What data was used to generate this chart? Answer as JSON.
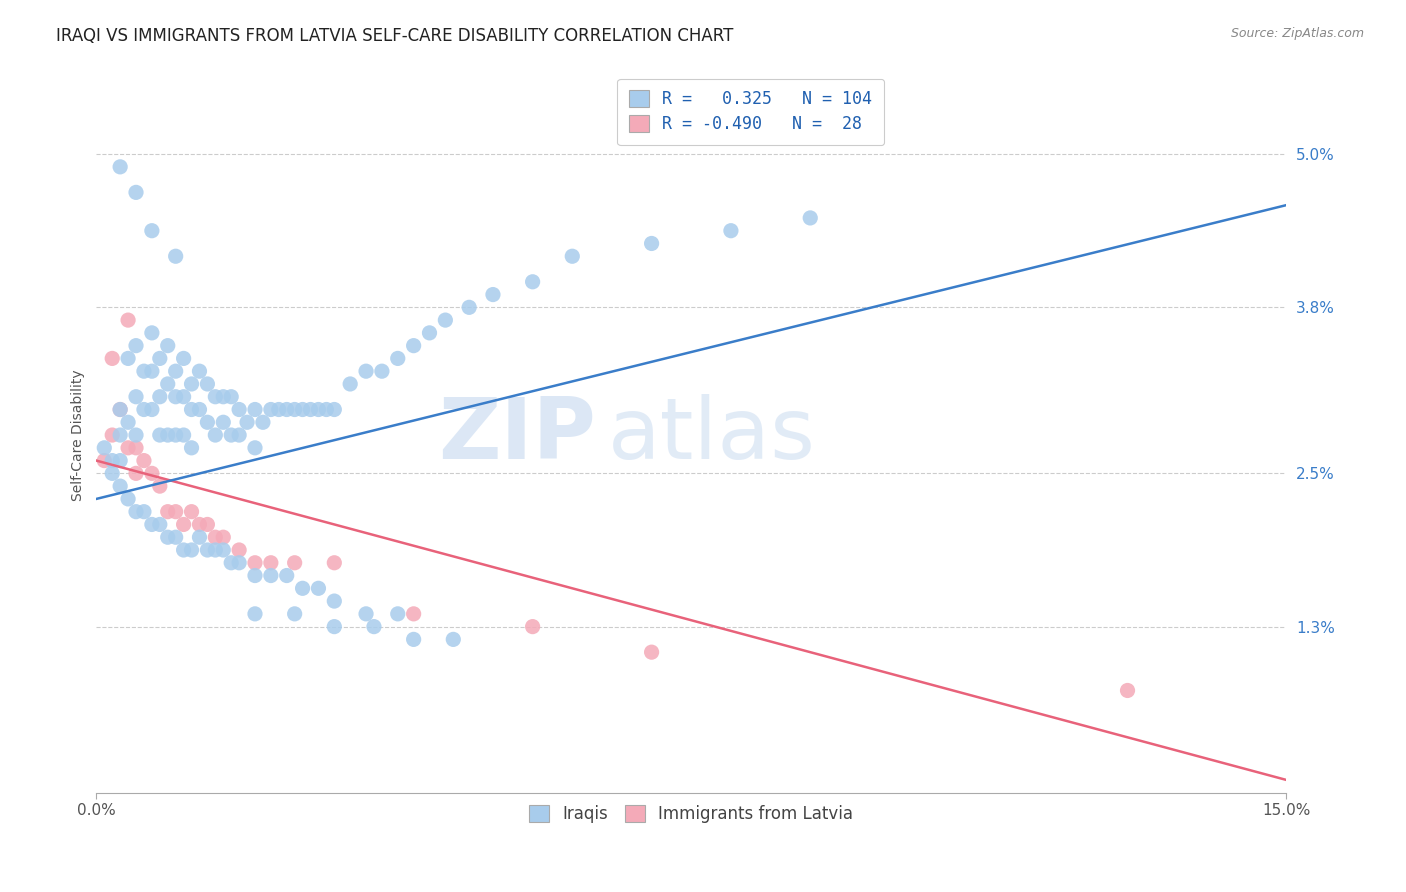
{
  "title": "IRAQI VS IMMIGRANTS FROM LATVIA SELF-CARE DISABILITY CORRELATION CHART",
  "source": "Source: ZipAtlas.com",
  "ylabel": "Self-Care Disability",
  "ytick_labels": [
    "5.0%",
    "3.8%",
    "2.5%",
    "1.3%"
  ],
  "ytick_values": [
    0.05,
    0.038,
    0.025,
    0.013
  ],
  "xlim": [
    0.0,
    0.15
  ],
  "ylim": [
    0.0,
    0.056
  ],
  "background_color": "#ffffff",
  "grid_color": "#cccccc",
  "watermark_text": "ZIP",
  "watermark_text2": "atlas",
  "series": [
    {
      "name": "Iraqis",
      "R": 0.325,
      "N": 104,
      "color": "#a8ccec",
      "line_color": "#3a7dc9",
      "scatter_x": [
        0.001,
        0.002,
        0.002,
        0.003,
        0.003,
        0.003,
        0.004,
        0.004,
        0.005,
        0.005,
        0.005,
        0.006,
        0.006,
        0.007,
        0.007,
        0.007,
        0.008,
        0.008,
        0.008,
        0.009,
        0.009,
        0.009,
        0.01,
        0.01,
        0.01,
        0.011,
        0.011,
        0.011,
        0.012,
        0.012,
        0.012,
        0.013,
        0.013,
        0.014,
        0.014,
        0.015,
        0.015,
        0.016,
        0.016,
        0.017,
        0.017,
        0.018,
        0.018,
        0.019,
        0.02,
        0.02,
        0.021,
        0.022,
        0.023,
        0.024,
        0.025,
        0.026,
        0.027,
        0.028,
        0.029,
        0.03,
        0.032,
        0.034,
        0.036,
        0.038,
        0.04,
        0.042,
        0.044,
        0.047,
        0.05,
        0.055,
        0.06,
        0.07,
        0.08,
        0.09,
        0.003,
        0.004,
        0.005,
        0.006,
        0.007,
        0.008,
        0.009,
        0.01,
        0.011,
        0.012,
        0.013,
        0.014,
        0.015,
        0.016,
        0.017,
        0.018,
        0.02,
        0.022,
        0.024,
        0.026,
        0.028,
        0.03,
        0.034,
        0.038,
        0.02,
        0.025,
        0.03,
        0.035,
        0.04,
        0.045,
        0.003,
        0.005,
        0.007,
        0.01
      ],
      "scatter_y": [
        0.027,
        0.026,
        0.025,
        0.03,
        0.028,
        0.026,
        0.034,
        0.029,
        0.035,
        0.031,
        0.028,
        0.033,
        0.03,
        0.036,
        0.033,
        0.03,
        0.034,
        0.031,
        0.028,
        0.035,
        0.032,
        0.028,
        0.033,
        0.031,
        0.028,
        0.034,
        0.031,
        0.028,
        0.032,
        0.03,
        0.027,
        0.033,
        0.03,
        0.032,
        0.029,
        0.031,
        0.028,
        0.031,
        0.029,
        0.031,
        0.028,
        0.03,
        0.028,
        0.029,
        0.03,
        0.027,
        0.029,
        0.03,
        0.03,
        0.03,
        0.03,
        0.03,
        0.03,
        0.03,
        0.03,
        0.03,
        0.032,
        0.033,
        0.033,
        0.034,
        0.035,
        0.036,
        0.037,
        0.038,
        0.039,
        0.04,
        0.042,
        0.043,
        0.044,
        0.045,
        0.024,
        0.023,
        0.022,
        0.022,
        0.021,
        0.021,
        0.02,
        0.02,
        0.019,
        0.019,
        0.02,
        0.019,
        0.019,
        0.019,
        0.018,
        0.018,
        0.017,
        0.017,
        0.017,
        0.016,
        0.016,
        0.015,
        0.014,
        0.014,
        0.014,
        0.014,
        0.013,
        0.013,
        0.012,
        0.012,
        0.049,
        0.047,
        0.044,
        0.042
      ],
      "trend_x": [
        0.0,
        0.15
      ],
      "trend_y": [
        0.023,
        0.046
      ]
    },
    {
      "name": "Immigrants from Latvia",
      "R": -0.49,
      "N": 28,
      "color": "#f4aab8",
      "line_color": "#e8627a",
      "scatter_x": [
        0.001,
        0.002,
        0.002,
        0.003,
        0.004,
        0.004,
        0.005,
        0.005,
        0.006,
        0.007,
        0.008,
        0.009,
        0.01,
        0.011,
        0.012,
        0.013,
        0.014,
        0.015,
        0.016,
        0.018,
        0.02,
        0.022,
        0.025,
        0.03,
        0.04,
        0.055,
        0.07,
        0.13
      ],
      "scatter_y": [
        0.026,
        0.034,
        0.028,
        0.03,
        0.037,
        0.027,
        0.027,
        0.025,
        0.026,
        0.025,
        0.024,
        0.022,
        0.022,
        0.021,
        0.022,
        0.021,
        0.021,
        0.02,
        0.02,
        0.019,
        0.018,
        0.018,
        0.018,
        0.018,
        0.014,
        0.013,
        0.011,
        0.008
      ],
      "trend_x": [
        0.0,
        0.15
      ],
      "trend_y": [
        0.026,
        0.001
      ]
    }
  ],
  "title_fontsize": 12,
  "axis_label_fontsize": 10,
  "tick_fontsize": 11,
  "legend_fontsize": 12
}
